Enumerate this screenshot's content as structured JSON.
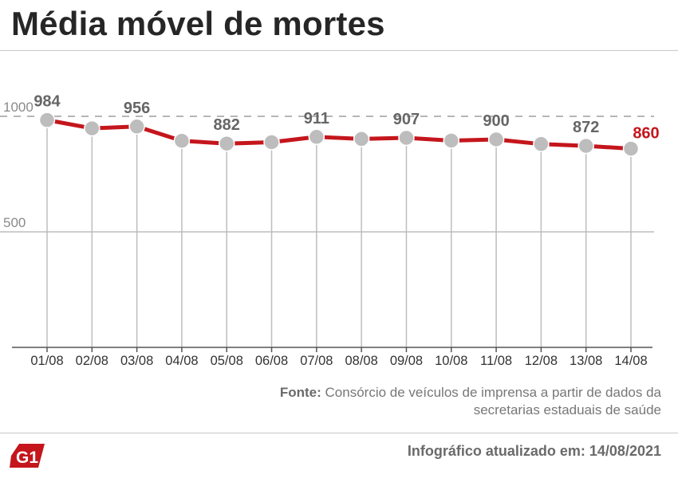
{
  "header": {
    "title": "Média móvel de mortes"
  },
  "footer": {
    "source_label": "Fonte:",
    "source_text": "Consórcio de veículos de imprensa a partir de dados da secretarias estaduais de saúde",
    "updated": "Infográfico atualizado em: 14/08/2021",
    "logo_text": "G1"
  },
  "colors": {
    "line": "#c4161c",
    "point": "#bdbdbd",
    "highlight_label": "#c4161c",
    "label": "#666666",
    "grid": "#bdbdbd"
  },
  "chart_data": {
    "type": "line",
    "title": "Média móvel de mortes",
    "categories": [
      "01/08",
      "02/08",
      "03/08",
      "04/08",
      "05/08",
      "06/08",
      "07/08",
      "08/08",
      "09/08",
      "10/08",
      "11/08",
      "12/08",
      "13/08",
      "14/08"
    ],
    "values": [
      984,
      948,
      956,
      894,
      882,
      888,
      911,
      902,
      907,
      895,
      900,
      880,
      872,
      860
    ],
    "data_labels": [
      {
        "index": 0,
        "text": "984"
      },
      {
        "index": 2,
        "text": "956"
      },
      {
        "index": 4,
        "text": "882"
      },
      {
        "index": 6,
        "text": "911"
      },
      {
        "index": 8,
        "text": "907"
      },
      {
        "index": 10,
        "text": "900"
      },
      {
        "index": 12,
        "text": "872"
      },
      {
        "index": 13,
        "text": "860",
        "highlight": true
      }
    ],
    "y_ticks": [
      "1000",
      "500"
    ],
    "y_tick_values": [
      1000,
      500
    ],
    "ylim": [
      0,
      1000
    ],
    "dashed_reference": 1000,
    "grid": true,
    "legend": "none"
  }
}
